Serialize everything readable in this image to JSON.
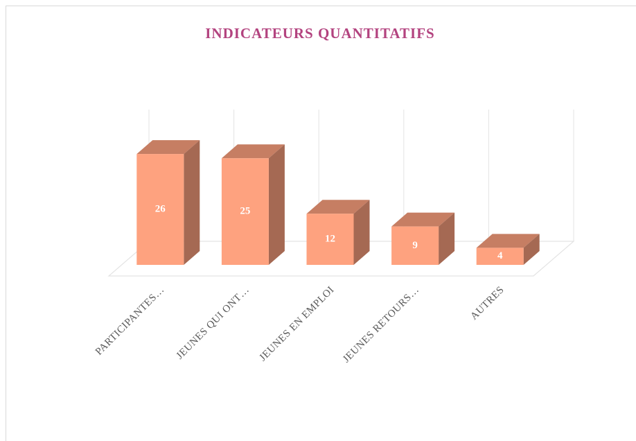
{
  "chart_data": {
    "type": "bar3d",
    "title": "INDICATEURS QUANTITATIFS",
    "categories": [
      "PARTICIPANTES…",
      "JEUNES QUI ONT…",
      "JEUNES EN EMPLOI",
      "JEUNES RETOURS…",
      "AUTRES"
    ],
    "values": [
      26,
      25,
      12,
      9,
      4
    ],
    "color": "#fea27f"
  }
}
